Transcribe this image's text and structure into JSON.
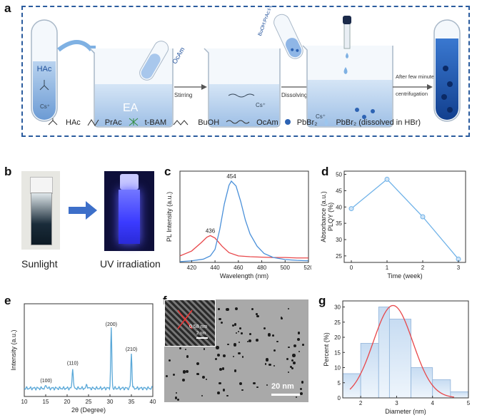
{
  "panels": {
    "a": "a",
    "b": "b",
    "c": "c",
    "d": "d",
    "e": "e",
    "f": "f",
    "g": "g"
  },
  "panel_a": {
    "tube_label": "HAc",
    "beaker1_label": "EA",
    "ocam_tube_label": "OcAm",
    "mix_tube_label": "BuOH:PrAc:t-BAM",
    "step1": "Stirring",
    "step2": "Dissolving",
    "step3_line1": "After few minutes",
    "step3_line2": "centrifugation",
    "cs_label": "Cs⁺",
    "legend": [
      {
        "icon": "hac-structure-icon",
        "label": "HAc"
      },
      {
        "icon": "prac-structure-icon",
        "label": "PrAc"
      },
      {
        "icon": "tbam-structure-icon",
        "label": "t-BAM"
      },
      {
        "icon": "buoh-structure-icon",
        "label": "BuOH"
      },
      {
        "icon": "ocam-chain-icon",
        "label": "OcAm"
      },
      {
        "icon": "pbbr2-dot-icon",
        "label": "PbBr₂"
      },
      {
        "icon": "drop-icon",
        "label": "PbBr₂ (dissolved in HBr)"
      }
    ]
  },
  "panel_b": {
    "left_caption": "Sunlight",
    "right_caption": "UV irradiation"
  },
  "panel_f": {
    "scale_bar": "20 nm",
    "inset_scale": "2 nm",
    "lattice_label": "0.58 nm"
  },
  "chart_data": [
    {
      "panel": "c",
      "type": "line",
      "xlabel": "Wavelength (nm)",
      "ylabel": "PL Intensity (a.u.)",
      "xlim": [
        410,
        520
      ],
      "xticks": [
        420,
        440,
        460,
        480,
        500,
        520
      ],
      "peak_labels": [
        {
          "x": 436,
          "text": "436"
        },
        {
          "x": 454,
          "text": "454"
        }
      ],
      "series": [
        {
          "color": "#e8474a",
          "x": [
            410,
            420,
            428,
            433,
            436,
            440,
            446,
            452,
            460,
            470,
            480,
            490,
            500,
            510,
            520
          ],
          "y": [
            0.08,
            0.14,
            0.24,
            0.31,
            0.33,
            0.3,
            0.2,
            0.12,
            0.08,
            0.07,
            0.065,
            0.06,
            0.06,
            0.055,
            0.055
          ]
        },
        {
          "color": "#4a90d9",
          "x": [
            410,
            420,
            430,
            436,
            440,
            444,
            448,
            452,
            454,
            458,
            462,
            466,
            470,
            476,
            482,
            490,
            500,
            510,
            520
          ],
          "y": [
            0.01,
            0.02,
            0.04,
            0.08,
            0.16,
            0.4,
            0.72,
            0.95,
            1.0,
            0.94,
            0.75,
            0.52,
            0.35,
            0.2,
            0.11,
            0.06,
            0.035,
            0.025,
            0.02
          ]
        }
      ]
    },
    {
      "panel": "d",
      "type": "line",
      "xlabel": "Time (week)",
      "ylabel": "PLQY (%)",
      "ylabel2": "Absorbance (a.u.)",
      "xlim": [
        -0.2,
        3.2
      ],
      "ylim": [
        23,
        51
      ],
      "xticks": [
        0,
        1,
        2,
        3
      ],
      "yticks": [
        25,
        30,
        35,
        40,
        45,
        50
      ],
      "series": [
        {
          "color": "#6fb2e8",
          "x": [
            0,
            1,
            2,
            3
          ],
          "y": [
            39.5,
            48.5,
            37,
            24
          ]
        }
      ]
    },
    {
      "panel": "e",
      "type": "line",
      "xlabel": "2θ (Degree)",
      "ylabel": "Intensity (a.u.)",
      "xlim": [
        10,
        40
      ],
      "xticks": [
        10,
        15,
        20,
        25,
        30,
        35,
        40
      ],
      "peak_labels": [
        {
          "x": 15.1,
          "text": "(100)"
        },
        {
          "x": 21.3,
          "text": "(110)"
        },
        {
          "x": 30.3,
          "text": "(200)"
        },
        {
          "x": 35.0,
          "text": "(210)"
        }
      ],
      "series": [
        {
          "color": "#5aa8d8",
          "peaks": [
            [
              15.1,
              0.04
            ],
            [
              21.3,
              0.25
            ],
            [
              30.3,
              0.72
            ],
            [
              35.0,
              0.42
            ],
            [
              24.6,
              0.05
            ]
          ]
        }
      ]
    },
    {
      "panel": "g",
      "type": "bar",
      "xlabel": "Diameter (nm)",
      "ylabel": "Percent (%)",
      "xlim": [
        1.5,
        5
      ],
      "ylim": [
        0,
        32
      ],
      "xticks": [
        2,
        3,
        4,
        5
      ],
      "yticks": [
        0,
        5,
        10,
        15,
        20,
        25,
        30
      ],
      "bins": [
        {
          "from": 1.5,
          "to": 2.0,
          "value": 8
        },
        {
          "from": 2.0,
          "to": 2.5,
          "value": 18
        },
        {
          "from": 2.5,
          "to": 2.8,
          "value": 30
        },
        {
          "from": 2.8,
          "to": 3.4,
          "value": 26
        },
        {
          "from": 3.4,
          "to": 4.0,
          "value": 10
        },
        {
          "from": 4.0,
          "to": 4.5,
          "value": 6
        },
        {
          "from": 4.5,
          "to": 5.0,
          "value": 2
        }
      ],
      "fit": {
        "color": "#e8474a",
        "mean": 2.9,
        "sigma": 0.55,
        "amp": 30.5
      }
    }
  ]
}
